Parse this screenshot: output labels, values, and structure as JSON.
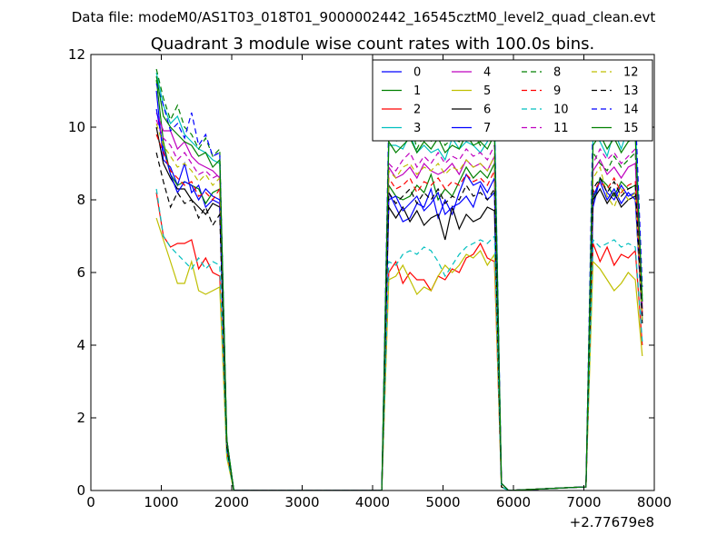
{
  "header": {
    "suptitle": "Data file: modeM0/AS1T03_018T01_9000002442_16545cztM0_level2_quad_clean.evt"
  },
  "chart_data": {
    "type": "line",
    "title": "Quadrant 3 module wise count rates with 100.0s bins.",
    "xlabel": "",
    "ylabel": "",
    "x_offset_label": "+2.77679e8",
    "xlim": [
      0,
      8000
    ],
    "ylim": [
      0,
      12
    ],
    "x_ticks": [
      0,
      1000,
      2000,
      3000,
      4000,
      5000,
      6000,
      7000,
      8000
    ],
    "x_tick_labels": [
      "0",
      "1000",
      "2000",
      "3000",
      "4000",
      "5000",
      "6000",
      "7000",
      "8000"
    ],
    "y_ticks": [
      0,
      2,
      4,
      6,
      8,
      10,
      12
    ],
    "y_tick_labels": [
      "0",
      "2",
      "4",
      "6",
      "8",
      "10",
      "12"
    ],
    "grid": false,
    "legend_position": "top-right",
    "legend_columns": 4,
    "x": [
      930,
      1030,
      1130,
      1230,
      1330,
      1430,
      1530,
      1630,
      1730,
      1830,
      1930,
      2030,
      2130,
      4130,
      4230,
      4330,
      4430,
      4530,
      4630,
      4730,
      4830,
      4930,
      5030,
      5130,
      5230,
      5330,
      5430,
      5530,
      5630,
      5730,
      5830,
      5930,
      7030,
      7130,
      7230,
      7330,
      7430,
      7530,
      7630,
      7730,
      7830
    ],
    "gaps": [
      [
        2130,
        4130
      ],
      [
        5930,
        7030
      ]
    ],
    "series": [
      {
        "name": "0",
        "color": "#0000ff",
        "dash": "solid",
        "values": [
          11.0,
          9.1,
          8.9,
          8.4,
          9.0,
          8.2,
          8.4,
          7.8,
          8.0,
          7.9,
          1.3,
          0,
          0,
          0.0,
          8.2,
          7.8,
          7.4,
          7.5,
          7.9,
          7.8,
          8.3,
          7.5,
          8.0,
          7.6,
          8.2,
          8.7,
          8.4,
          8.5,
          8.2,
          8.6,
          0.2,
          0,
          0.1,
          7.8,
          8.6,
          8.2,
          8.0,
          8.4,
          8.1,
          8.2,
          4.8
        ]
      },
      {
        "name": "1",
        "color": "#008000",
        "dash": "solid",
        "values": [
          11.3,
          9.6,
          8.7,
          8.4,
          8.5,
          8.4,
          8.3,
          7.9,
          8.2,
          8.3,
          1.3,
          0,
          0,
          0.0,
          8.4,
          8.1,
          8.0,
          8.1,
          8.4,
          8.2,
          8.7,
          8.0,
          8.3,
          8.1,
          8.5,
          8.9,
          8.6,
          8.8,
          8.6,
          9.0,
          0.2,
          0,
          0.1,
          8.0,
          8.6,
          8.4,
          8.1,
          8.5,
          8.3,
          8.4,
          5.0
        ]
      },
      {
        "name": "2",
        "color": "#ff0000",
        "dash": "solid",
        "values": [
          8.2,
          7.0,
          6.7,
          6.8,
          6.8,
          6.9,
          6.1,
          6.4,
          6.0,
          5.9,
          1.0,
          0,
          0,
          0.0,
          6.0,
          6.3,
          5.7,
          6.0,
          5.8,
          5.8,
          5.5,
          5.9,
          5.8,
          6.1,
          6.0,
          6.4,
          6.5,
          6.8,
          6.4,
          6.3,
          0.1,
          0,
          0.1,
          6.8,
          6.3,
          6.7,
          6.2,
          6.5,
          6.4,
          6.6,
          4.0
        ]
      },
      {
        "name": "3",
        "color": "#00bfbf",
        "dash": "solid",
        "values": [
          11.5,
          10.6,
          10.1,
          10.3,
          9.8,
          9.6,
          9.4,
          9.3,
          9.1,
          9.0,
          1.4,
          0,
          0,
          0.0,
          9.5,
          9.5,
          9.4,
          9.8,
          9.3,
          9.5,
          9.3,
          9.4,
          9.1,
          9.7,
          9.4,
          9.6,
          9.5,
          9.3,
          9.6,
          10.4,
          0.2,
          0,
          0.1,
          9.8,
          9.6,
          9.2,
          9.9,
          9.4,
          10.0,
          10.2,
          5.2
        ]
      },
      {
        "name": "4",
        "color": "#bf00bf",
        "dash": "solid",
        "values": [
          10.4,
          9.9,
          9.9,
          9.4,
          9.6,
          9.2,
          9.0,
          8.9,
          8.8,
          8.6,
          1.3,
          0,
          0,
          0.0,
          8.9,
          8.6,
          8.7,
          8.9,
          8.6,
          9.0,
          8.8,
          8.7,
          8.8,
          9.0,
          8.7,
          9.1,
          8.9,
          9.0,
          8.8,
          9.2,
          0.2,
          0,
          0.1,
          8.8,
          9.1,
          8.7,
          8.9,
          8.6,
          8.9,
          9.0,
          5.0
        ]
      },
      {
        "name": "5",
        "color": "#bfbf00",
        "dash": "solid",
        "values": [
          7.5,
          6.9,
          6.3,
          5.7,
          5.7,
          6.3,
          5.5,
          5.4,
          5.5,
          5.6,
          0.9,
          0,
          0,
          0.0,
          5.8,
          5.9,
          6.2,
          5.8,
          5.4,
          5.6,
          5.5,
          5.9,
          6.2,
          6.0,
          6.2,
          6.5,
          6.4,
          6.6,
          6.2,
          6.5,
          0.1,
          0,
          0.1,
          6.3,
          6.1,
          5.8,
          5.5,
          5.7,
          6.0,
          5.8,
          3.7
        ]
      },
      {
        "name": "6",
        "color": "#000000",
        "dash": "solid",
        "values": [
          10.0,
          9.0,
          8.6,
          8.3,
          8.3,
          8.0,
          7.8,
          7.6,
          7.9,
          7.8,
          1.2,
          0,
          0,
          0.0,
          7.8,
          7.5,
          7.8,
          7.4,
          7.7,
          7.3,
          7.5,
          7.6,
          6.9,
          7.8,
          7.2,
          7.6,
          7.4,
          7.5,
          7.8,
          7.7,
          0.1,
          0,
          0.1,
          8.0,
          8.3,
          7.9,
          8.2,
          7.8,
          8.0,
          8.1,
          4.6
        ]
      },
      {
        "name": "7",
        "color": "#0000ff",
        "dash": "solid",
        "values": [
          10.5,
          9.4,
          8.7,
          8.2,
          8.5,
          8.4,
          8.0,
          8.3,
          8.1,
          8.0,
          1.3,
          0,
          0,
          0.0,
          8.0,
          8.1,
          7.7,
          7.9,
          8.1,
          7.7,
          7.9,
          8.2,
          7.6,
          7.8,
          7.9,
          8.1,
          7.8,
          8.4,
          8.0,
          8.2,
          0.2,
          0,
          0.1,
          8.1,
          8.5,
          8.0,
          8.3,
          7.9,
          8.2,
          8.0,
          4.7
        ]
      },
      {
        "name": "8",
        "color": "#008000",
        "dash": "dashed",
        "values": [
          11.6,
          10.8,
          10.2,
          10.6,
          10.0,
          9.8,
          9.4,
          9.7,
          9.2,
          9.4,
          1.4,
          0,
          0,
          0.0,
          9.8,
          9.6,
          9.9,
          10.2,
          9.4,
          9.8,
          9.6,
          9.9,
          9.5,
          9.7,
          9.6,
          10.0,
          9.8,
          9.5,
          9.9,
          10.0,
          0.2,
          0,
          0.1,
          9.3,
          9.0,
          8.8,
          9.2,
          8.9,
          9.1,
          9.3,
          5.3
        ]
      },
      {
        "name": "9",
        "color": "#ff0000",
        "dash": "dashed",
        "values": [
          9.8,
          9.3,
          8.8,
          8.6,
          8.4,
          8.5,
          8.1,
          8.2,
          8.0,
          8.3,
          1.3,
          0,
          0,
          0.0,
          8.6,
          8.3,
          8.4,
          8.6,
          8.2,
          8.5,
          8.4,
          8.6,
          8.3,
          8.5,
          8.4,
          8.7,
          8.5,
          8.6,
          8.4,
          8.8,
          0.2,
          0,
          0.1,
          8.2,
          8.5,
          8.3,
          8.6,
          8.2,
          8.4,
          8.5,
          4.9
        ]
      },
      {
        "name": "10",
        "color": "#00bfbf",
        "dash": "dashed",
        "values": [
          8.3,
          7.0,
          6.7,
          6.5,
          6.3,
          6.1,
          6.4,
          6.1,
          6.3,
          6.2,
          1.0,
          0,
          0,
          0.0,
          6.3,
          6.2,
          6.5,
          6.6,
          6.5,
          6.7,
          6.6,
          6.3,
          5.9,
          6.2,
          6.5,
          6.7,
          6.8,
          6.9,
          6.8,
          7.0,
          0.1,
          0,
          0.1,
          6.9,
          6.7,
          6.8,
          6.9,
          6.7,
          6.8,
          6.7,
          4.1
        ]
      },
      {
        "name": "11",
        "color": "#bf00bf",
        "dash": "dashed",
        "values": [
          10.2,
          9.7,
          9.5,
          9.1,
          9.3,
          9.0,
          8.7,
          8.8,
          8.6,
          8.7,
          1.3,
          0,
          0,
          0.0,
          9.0,
          8.8,
          9.1,
          9.3,
          8.9,
          9.2,
          9.0,
          9.3,
          9.0,
          9.2,
          9.1,
          9.4,
          9.2,
          9.3,
          9.1,
          9.5,
          0.2,
          0,
          0.1,
          9.0,
          9.4,
          9.1,
          9.3,
          9.0,
          9.2,
          9.4,
          5.1
        ]
      },
      {
        "name": "12",
        "color": "#bfbf00",
        "dash": "dashed",
        "values": [
          10.1,
          9.5,
          9.2,
          8.9,
          9.0,
          8.8,
          8.5,
          8.7,
          8.4,
          8.6,
          1.3,
          0,
          0,
          0.0,
          8.8,
          8.6,
          8.9,
          9.0,
          8.7,
          8.9,
          8.8,
          9.0,
          8.7,
          8.9,
          8.8,
          9.1,
          8.9,
          9.0,
          8.8,
          9.2,
          0.2,
          0,
          0.1,
          8.6,
          8.9,
          8.1,
          7.8,
          8.3,
          8.0,
          8.2,
          4.7
        ]
      },
      {
        "name": "13",
        "color": "#000000",
        "dash": "dashed",
        "values": [
          9.3,
          8.5,
          7.8,
          8.2,
          7.9,
          8.0,
          7.5,
          7.8,
          7.3,
          7.6,
          1.2,
          0,
          0,
          0.0,
          8.2,
          7.9,
          8.1,
          8.3,
          7.9,
          8.2,
          8.0,
          8.3,
          7.9,
          8.1,
          8.0,
          8.4,
          8.1,
          8.2,
          8.0,
          8.3,
          0.2,
          0,
          0.1,
          8.3,
          8.6,
          8.2,
          8.5,
          8.1,
          8.3,
          8.4,
          4.8
        ]
      },
      {
        "name": "14",
        "color": "#0000ff",
        "dash": "dashed",
        "values": [
          11.2,
          10.6,
          9.9,
          10.1,
          9.7,
          10.4,
          9.5,
          9.8,
          9.2,
          9.3,
          1.4,
          0,
          0,
          0.0,
          10.2,
          9.9,
          10.1,
          10.3,
          9.8,
          10.1,
          10.0,
          10.3,
          9.8,
          10.1,
          9.9,
          10.3,
          10.0,
          10.2,
          9.9,
          10.3,
          0.2,
          0,
          0.1,
          10.4,
          10.8,
          10.2,
          10.6,
          10.1,
          10.4,
          10.5,
          5.6
        ]
      },
      {
        "name": "15",
        "color": "#008000",
        "dash": "solid",
        "values": [
          11.4,
          10.3,
          10.0,
          9.8,
          9.6,
          9.5,
          9.2,
          9.3,
          8.9,
          9.1,
          1.4,
          0,
          0,
          0.0,
          9.6,
          9.3,
          9.5,
          9.7,
          9.3,
          9.6,
          9.4,
          9.7,
          9.3,
          9.5,
          9.4,
          9.8,
          9.5,
          9.6,
          9.4,
          9.8,
          0.2,
          0,
          0.1,
          9.5,
          9.8,
          9.4,
          9.7,
          9.3,
          9.6,
          9.7,
          5.2
        ]
      }
    ]
  }
}
